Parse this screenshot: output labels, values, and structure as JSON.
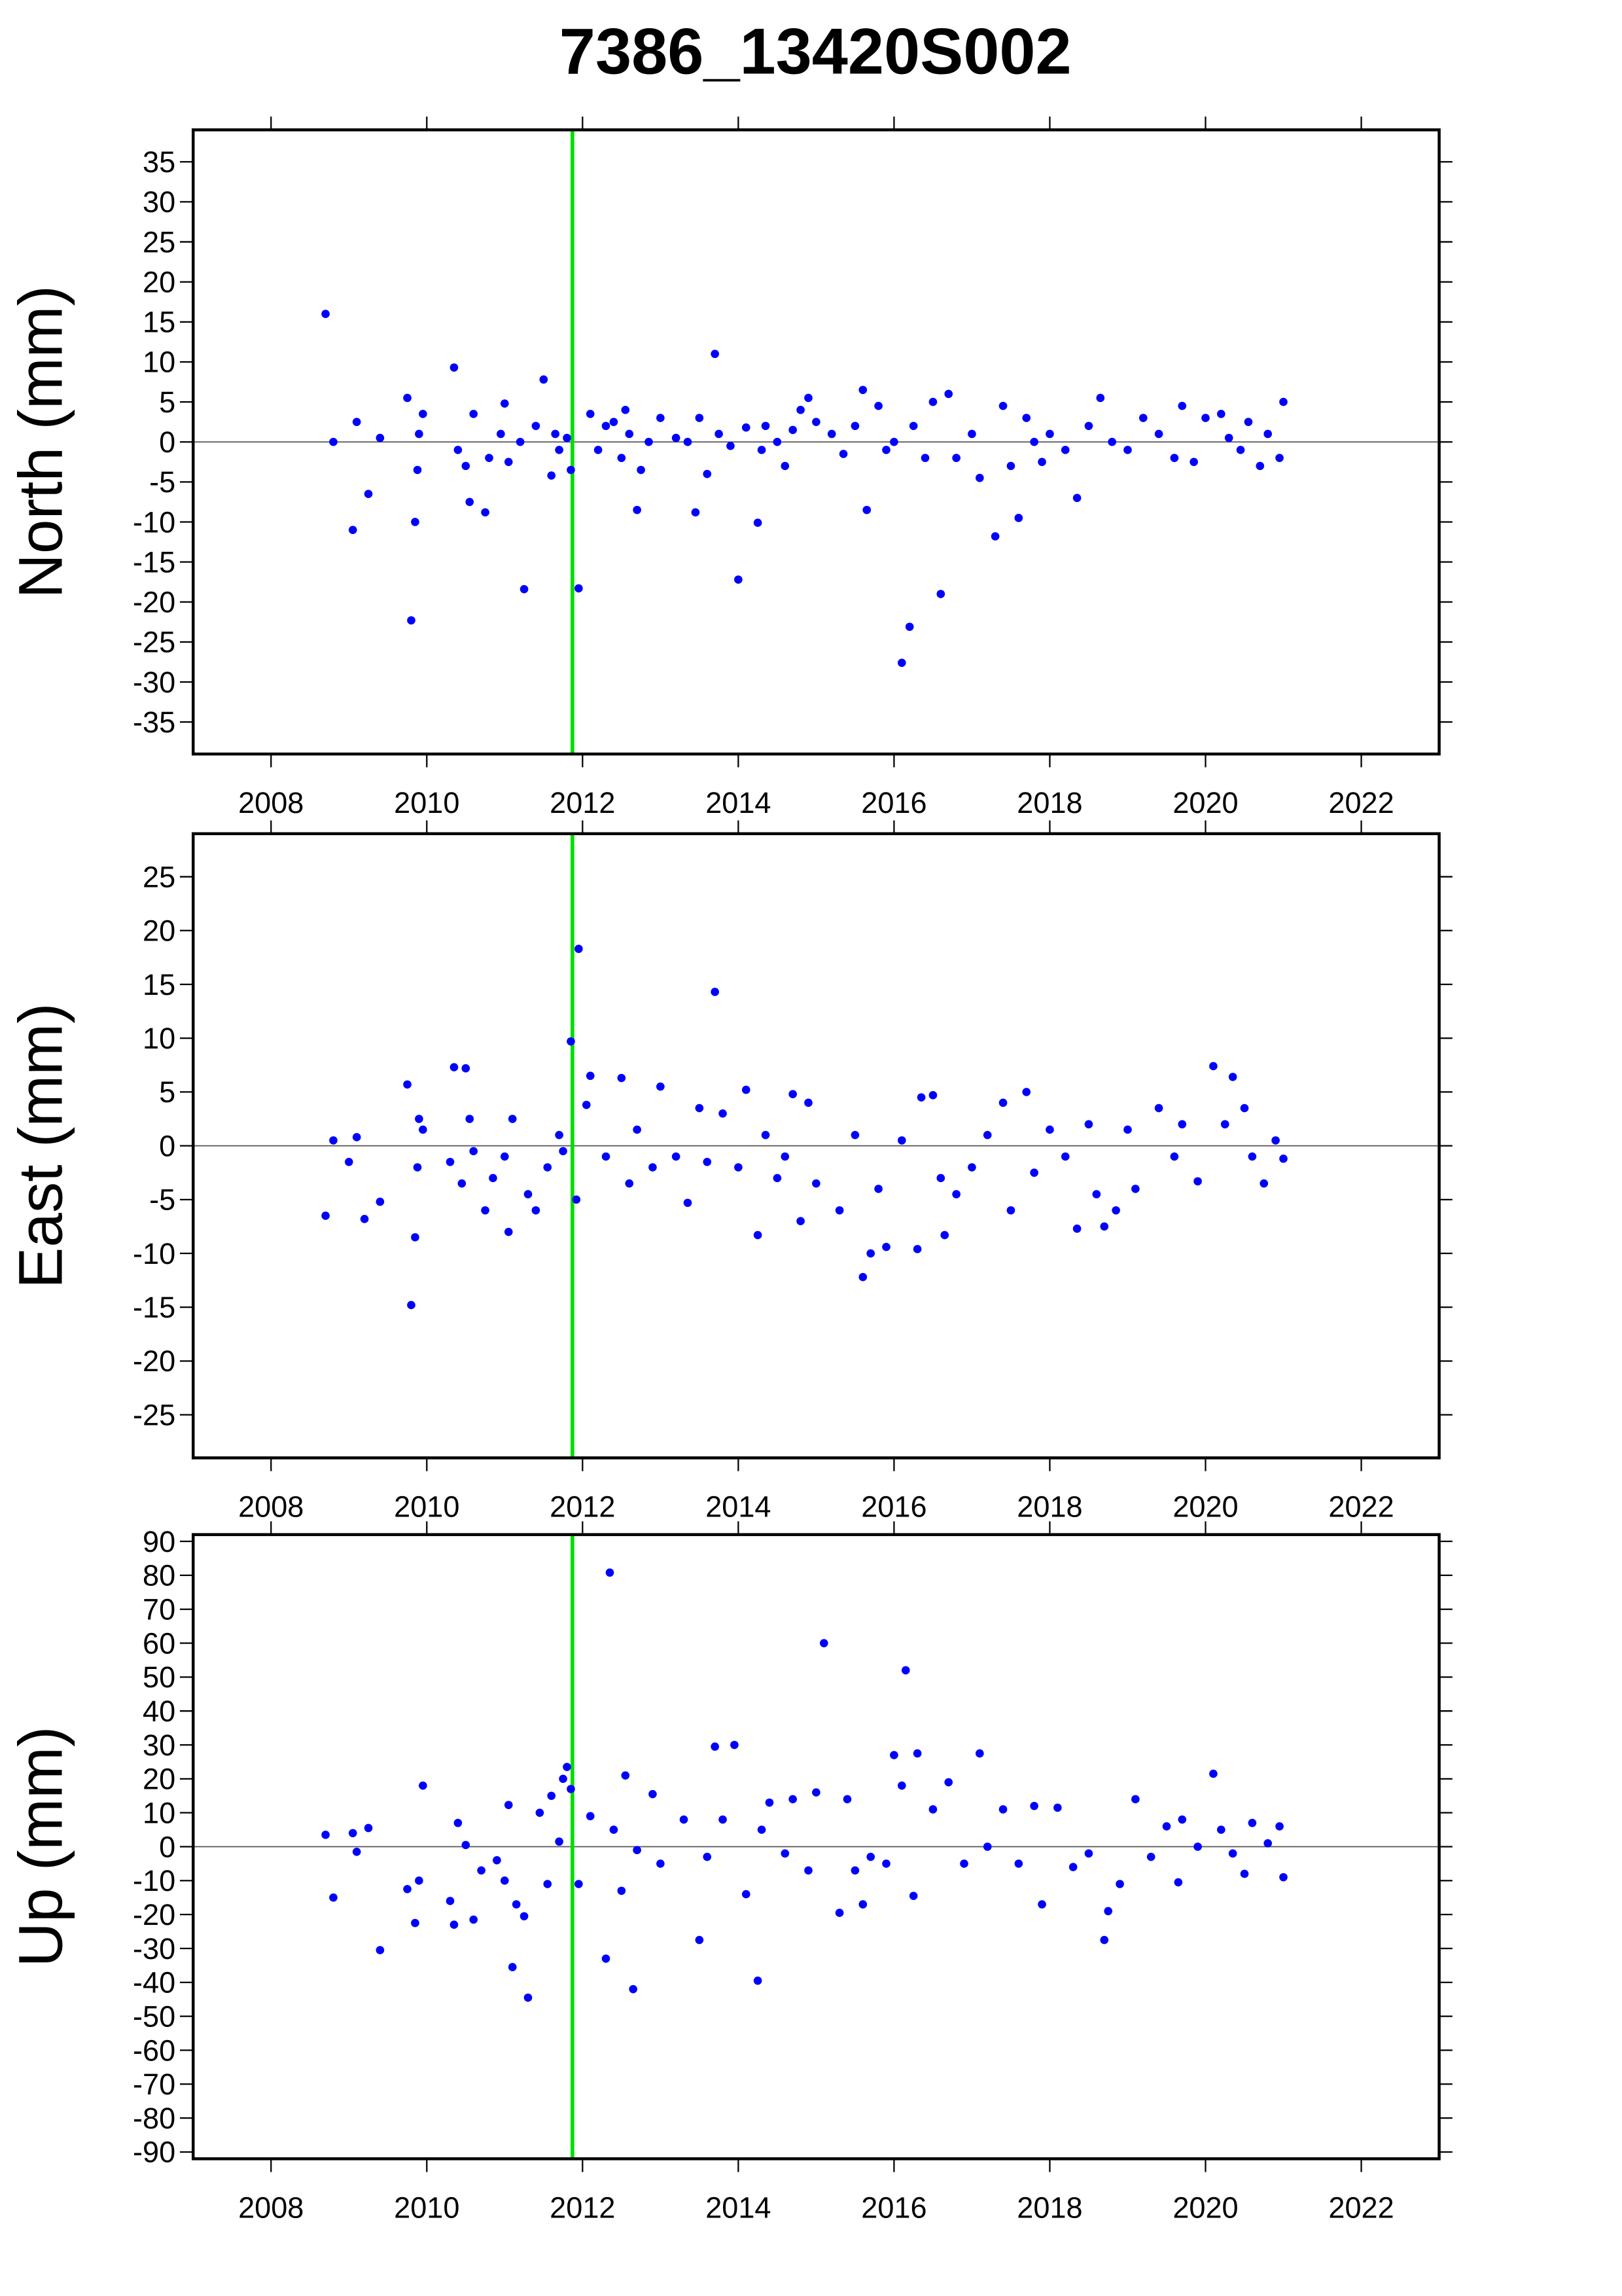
{
  "title": "7386_13420S002",
  "chart_data": [
    {
      "type": "scatter",
      "y_label": "North (mm)",
      "color": "#0000ff",
      "zero_line": true,
      "vline": 2011.87,
      "vline_color": "#00dd00",
      "xlim": [
        2007,
        2023
      ],
      "xticks": [
        2008,
        2010,
        2012,
        2014,
        2016,
        2018,
        2020,
        2022
      ],
      "ylim": [
        -39,
        39
      ],
      "yticks": [
        -35,
        -30,
        -25,
        -20,
        -15,
        -10,
        -5,
        0,
        5,
        10,
        15,
        20,
        25,
        30,
        35
      ],
      "x": [
        2008.7,
        2008.8,
        2009.05,
        2009.1,
        2009.25,
        2009.4,
        2009.75,
        2009.8,
        2009.85,
        2009.88,
        2009.9,
        2009.95,
        2010.35,
        2010.4,
        2010.5,
        2010.55,
        2010.6,
        2010.75,
        2010.8,
        2010.95,
        2011.0,
        2011.05,
        2011.2,
        2011.25,
        2011.4,
        2011.5,
        2011.6,
        2011.65,
        2011.7,
        2011.8,
        2011.85,
        2011.95,
        2012.1,
        2012.2,
        2012.3,
        2012.4,
        2012.5,
        2012.55,
        2012.6,
        2012.7,
        2012.75,
        2012.85,
        2013.0,
        2013.2,
        2013.35,
        2013.45,
        2013.5,
        2013.6,
        2013.7,
        2013.75,
        2013.9,
        2014.0,
        2014.1,
        2014.25,
        2014.3,
        2014.35,
        2014.5,
        2014.6,
        2014.7,
        2014.8,
        2014.9,
        2015.0,
        2015.2,
        2015.35,
        2015.5,
        2015.6,
        2015.65,
        2015.8,
        2015.9,
        2016.0,
        2016.1,
        2016.2,
        2016.25,
        2016.4,
        2016.5,
        2016.6,
        2016.7,
        2016.8,
        2017.0,
        2017.1,
        2017.3,
        2017.4,
        2017.5,
        2017.6,
        2017.7,
        2017.8,
        2017.9,
        2018.0,
        2018.2,
        2018.35,
        2018.5,
        2018.65,
        2018.8,
        2019.0,
        2019.2,
        2019.4,
        2019.6,
        2019.7,
        2019.85,
        2020.0,
        2020.2,
        2020.3,
        2020.45,
        2020.55,
        2020.7,
        2020.8,
        2020.95,
        2021.0
      ],
      "values": [
        16,
        0,
        -11,
        2.5,
        -6.5,
        0.5,
        5.5,
        -22.3,
        -10,
        -3.5,
        1,
        3.5,
        9.3,
        -1,
        -3,
        -7.5,
        3.5,
        -8.8,
        -2,
        1,
        4.8,
        -2.5,
        0,
        -18.4,
        2,
        7.8,
        -4.2,
        1,
        -1,
        0.5,
        -3.5,
        -18.3,
        3.5,
        -1,
        2,
        2.5,
        -2,
        4,
        1,
        -8.5,
        -3.5,
        0,
        3,
        0.5,
        0,
        -8.8,
        3,
        -4,
        11,
        1,
        -0.5,
        -17.2,
        1.8,
        -10.1,
        -1,
        2,
        0,
        -3,
        1.5,
        4,
        5.5,
        2.5,
        1,
        -1.5,
        2,
        6.5,
        -8.5,
        4.5,
        -1,
        0,
        -27.6,
        -23.1,
        2,
        -2,
        5,
        -19,
        6,
        -2,
        1,
        -4.5,
        -11.8,
        4.5,
        -3,
        -9.5,
        3,
        0,
        -2.5,
        1,
        -1,
        -7,
        2,
        5.5,
        0,
        -1,
        3,
        1,
        -2,
        4.5,
        -2.5,
        3,
        3.5,
        0.5,
        -1,
        2.5,
        -3,
        1,
        -2,
        5
      ]
    },
    {
      "type": "scatter",
      "y_label": "East (mm)",
      "color": "#0000ff",
      "zero_line": true,
      "vline": 2011.87,
      "vline_color": "#00dd00",
      "xlim": [
        2007,
        2023
      ],
      "xticks": [
        2008,
        2010,
        2012,
        2014,
        2016,
        2018,
        2020,
        2022
      ],
      "ylim": [
        -29,
        29
      ],
      "yticks": [
        -25,
        -20,
        -15,
        -10,
        -5,
        0,
        5,
        10,
        15,
        20,
        25
      ],
      "x": [
        2008.7,
        2008.8,
        2009.0,
        2009.1,
        2009.2,
        2009.4,
        2009.75,
        2009.8,
        2009.85,
        2009.88,
        2009.9,
        2009.95,
        2010.3,
        2010.35,
        2010.45,
        2010.5,
        2010.55,
        2010.6,
        2010.75,
        2010.85,
        2011.0,
        2011.05,
        2011.1,
        2011.3,
        2011.4,
        2011.55,
        2011.7,
        2011.75,
        2011.85,
        2011.92,
        2011.95,
        2012.05,
        2012.1,
        2012.3,
        2012.5,
        2012.6,
        2012.7,
        2012.9,
        2013.0,
        2013.2,
        2013.35,
        2013.5,
        2013.6,
        2013.7,
        2013.8,
        2014.0,
        2014.1,
        2014.25,
        2014.35,
        2014.5,
        2014.6,
        2014.7,
        2014.8,
        2014.9,
        2015.0,
        2015.3,
        2015.5,
        2015.6,
        2015.7,
        2015.8,
        2015.9,
        2016.1,
        2016.3,
        2016.35,
        2016.5,
        2016.6,
        2016.65,
        2016.8,
        2017.0,
        2017.2,
        2017.4,
        2017.5,
        2017.7,
        2017.8,
        2018.0,
        2018.2,
        2018.35,
        2018.5,
        2018.6,
        2018.7,
        2018.85,
        2019.0,
        2019.1,
        2019.4,
        2019.6,
        2019.7,
        2019.9,
        2020.1,
        2020.25,
        2020.35,
        2020.5,
        2020.6,
        2020.75,
        2020.9,
        2021.0
      ],
      "values": [
        -6.5,
        0.5,
        -1.5,
        0.8,
        -6.8,
        -5.2,
        5.7,
        -14.8,
        -8.5,
        -2,
        2.5,
        1.5,
        -1.5,
        7.3,
        -3.5,
        7.2,
        2.5,
        -0.5,
        -6,
        -3,
        -1,
        -8,
        2.5,
        -4.5,
        -6,
        -2,
        1,
        -0.5,
        9.7,
        -5,
        18.3,
        3.8,
        6.5,
        -1,
        6.3,
        -3.5,
        1.5,
        -2,
        5.5,
        -1,
        -5.3,
        3.5,
        -1.5,
        14.3,
        3,
        -2,
        5.2,
        -8.3,
        1,
        -3,
        -1,
        4.8,
        -7,
        4,
        -3.5,
        -6,
        1,
        -12.2,
        -10,
        -4,
        -9.4,
        0.5,
        -9.6,
        4.5,
        4.7,
        -3,
        -8.3,
        -4.5,
        -2,
        1,
        4,
        -6,
        5,
        -2.5,
        1.5,
        -1,
        -7.7,
        2,
        -4.5,
        -7.5,
        -6,
        1.5,
        -4,
        3.5,
        -1,
        2,
        -3.3,
        7.4,
        2,
        6.4,
        3.5,
        -1,
        -3.5,
        0.5,
        -1.2
      ]
    },
    {
      "type": "scatter",
      "y_label": "Up (mm)",
      "color": "#0000ff",
      "zero_line": true,
      "vline": 2011.87,
      "vline_color": "#00dd00",
      "xlim": [
        2007,
        2023
      ],
      "xticks": [
        2008,
        2010,
        2012,
        2014,
        2016,
        2018,
        2020,
        2022
      ],
      "ylim": [
        -92,
        92
      ],
      "yticks": [
        -90,
        -80,
        -70,
        -60,
        -50,
        -40,
        -30,
        -20,
        -10,
        0,
        10,
        20,
        30,
        40,
        50,
        60,
        70,
        80,
        90
      ],
      "x": [
        2008.7,
        2008.8,
        2009.05,
        2009.1,
        2009.25,
        2009.4,
        2009.75,
        2009.85,
        2009.9,
        2009.95,
        2010.3,
        2010.35,
        2010.4,
        2010.5,
        2010.6,
        2010.7,
        2010.9,
        2011.0,
        2011.05,
        2011.1,
        2011.15,
        2011.25,
        2011.3,
        2011.45,
        2011.55,
        2011.6,
        2011.7,
        2011.75,
        2011.8,
        2011.85,
        2011.95,
        2012.1,
        2012.3,
        2012.35,
        2012.4,
        2012.5,
        2012.55,
        2012.65,
        2012.7,
        2012.9,
        2013.0,
        2013.3,
        2013.5,
        2013.6,
        2013.7,
        2013.8,
        2013.95,
        2014.1,
        2014.25,
        2014.3,
        2014.4,
        2014.6,
        2014.7,
        2014.9,
        2015.0,
        2015.1,
        2015.3,
        2015.4,
        2015.5,
        2015.6,
        2015.7,
        2015.9,
        2016.0,
        2016.1,
        2016.15,
        2016.25,
        2016.3,
        2016.5,
        2016.7,
        2016.9,
        2017.1,
        2017.2,
        2017.4,
        2017.6,
        2017.8,
        2017.9,
        2018.1,
        2018.3,
        2018.5,
        2018.7,
        2018.75,
        2018.9,
        2019.1,
        2019.3,
        2019.5,
        2019.65,
        2019.7,
        2019.9,
        2020.1,
        2020.2,
        2020.35,
        2020.5,
        2020.6,
        2020.8,
        2020.95,
        2021.0
      ],
      "values": [
        3.5,
        -15,
        4,
        -1.5,
        5.5,
        -30.5,
        -12.5,
        -22.5,
        -10,
        18,
        -16,
        -23,
        7,
        0.5,
        -21.5,
        -7,
        -4,
        -10,
        12.3,
        -35.5,
        -17,
        -20.5,
        -44.5,
        10,
        -11,
        15,
        1.5,
        20,
        23.5,
        17,
        -11,
        9,
        -33,
        80.8,
        5,
        -13,
        21,
        -42,
        -1,
        15.5,
        -5,
        8,
        -27.5,
        -3,
        29.5,
        8,
        30,
        -14,
        -39.5,
        5,
        13,
        -2,
        14,
        -7,
        16,
        60,
        -19.5,
        14,
        -7,
        -17,
        -3,
        -5,
        27,
        18,
        52,
        -14.5,
        27.5,
        11,
        19,
        -5,
        27.5,
        0,
        11,
        -5,
        12,
        -17,
        11.5,
        -6,
        -2,
        -27.5,
        -19,
        -11,
        14,
        -3,
        6,
        -10.5,
        8,
        0,
        21.5,
        5,
        -2,
        -8,
        7,
        1,
        6,
        -9
      ]
    }
  ]
}
